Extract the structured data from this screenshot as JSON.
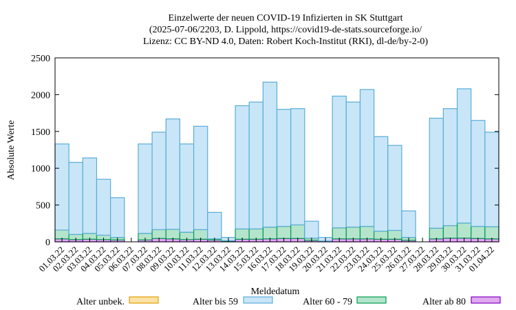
{
  "chart_data": {
    "type": "bar",
    "stacked": true,
    "title_lines": [
      "Einzelwerte der neuen COVID-19 Infizierten in SK Stuttgart",
      "(2025-07-06/2203, D. Lippold, https://covid19-de-stats.sourceforge.io/",
      "Lizenz: CC BY-ND 4.0, Daten: Robert Koch-Institut (RKI), dl-de/by-2-0)"
    ],
    "xlabel": "Meldedatum",
    "ylabel": "Absolute Werte",
    "ylim": [
      0,
      2500
    ],
    "yticks": [
      0,
      500,
      1000,
      1500,
      2000,
      2500
    ],
    "grid": false,
    "legend_position": "bottom",
    "categories": [
      "01.03.22",
      "02.03.22",
      "03.03.22",
      "04.03.22",
      "05.03.22",
      "06.03.22",
      "07.03.22",
      "08.03.22",
      "09.03.22",
      "10.03.22",
      "11.03.22",
      "12.03.22",
      "13.03.22",
      "14.03.22",
      "15.03.22",
      "16.03.22",
      "17.03.22",
      "18.03.22",
      "19.03.22",
      "20.03.22",
      "21.03.22",
      "22.03.22",
      "23.03.22",
      "24.03.22",
      "25.03.22",
      "26.03.22",
      "27.03.22",
      "28.03.22",
      "29.03.22",
      "30.03.22",
      "31.03.22",
      "01.04.22"
    ],
    "totals": [
      1330,
      1080,
      1140,
      850,
      600,
      0,
      1330,
      1490,
      1670,
      1330,
      1570,
      400,
      60,
      1850,
      1900,
      2170,
      1800,
      1810,
      280,
      60,
      1980,
      1900,
      2070,
      1430,
      1310,
      420,
      0,
      1680,
      1810,
      2080,
      1650,
      1490
    ],
    "series": [
      {
        "name": "Alter unbek.",
        "color": "#fbe3a8",
        "stroke": "#e0a000",
        "values": [
          0,
          0,
          0,
          0,
          0,
          0,
          0,
          0,
          0,
          0,
          0,
          0,
          0,
          0,
          0,
          0,
          0,
          0,
          0,
          0,
          0,
          0,
          0,
          0,
          0,
          0,
          0,
          0,
          0,
          0,
          0,
          0
        ]
      },
      {
        "name": "Alter ab 80",
        "color": "#e0aaf0",
        "stroke": "#8000c0",
        "values": [
          40,
          30,
          35,
          30,
          25,
          0,
          25,
          45,
          40,
          30,
          35,
          25,
          5,
          35,
          35,
          40,
          45,
          45,
          20,
          5,
          40,
          40,
          40,
          35,
          35,
          20,
          0,
          40,
          50,
          50,
          45,
          40
        ]
      },
      {
        "name": "Alter 60 - 79",
        "color": "#b4e4cc",
        "stroke": "#009a50",
        "values": [
          120,
          70,
          80,
          60,
          35,
          0,
          90,
          120,
          130,
          100,
          130,
          15,
          10,
          140,
          140,
          160,
          165,
          185,
          30,
          5,
          150,
          160,
          170,
          110,
          120,
          40,
          0,
          145,
          170,
          205,
          165,
          165
        ]
      },
      {
        "name": "Alter bis 59",
        "color": "#c8e6f8",
        "stroke": "#5aacd8",
        "values": [
          1170,
          980,
          1025,
          760,
          540,
          0,
          1215,
          1325,
          1500,
          1200,
          1405,
          360,
          45,
          1675,
          1725,
          1970,
          1590,
          1580,
          230,
          50,
          1790,
          1700,
          1860,
          1285,
          1155,
          360,
          0,
          1495,
          1590,
          1825,
          1440,
          1285
        ]
      }
    ],
    "legend": [
      "Alter unbek.",
      "Alter bis 59",
      "Alter 60 - 79",
      "Alter ab 80"
    ]
  }
}
